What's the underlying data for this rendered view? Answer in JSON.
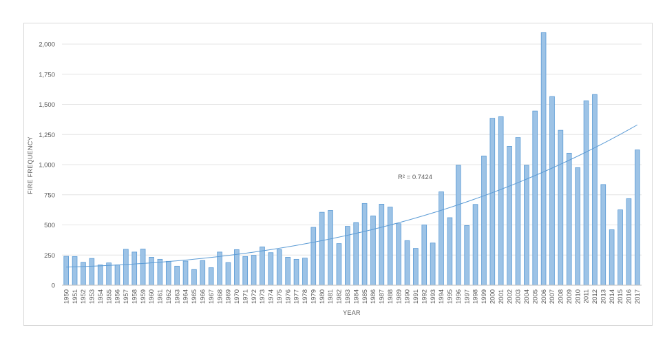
{
  "chart_data": {
    "type": "bar",
    "title": "",
    "xlabel": "YEAR",
    "ylabel": "FIRE FREQUENCY",
    "ylim": [
      0,
      2150
    ],
    "yticks": [
      0,
      250,
      500,
      750,
      1000,
      1250,
      1500,
      1750,
      2000
    ],
    "ytick_labels": [
      "0",
      "250",
      "500",
      "750",
      "1,000",
      "1,250",
      "1,500",
      "1,750",
      "2,000"
    ],
    "grid": true,
    "legend": "none",
    "categories": [
      "1950",
      "1951",
      "1952",
      "1953",
      "1954",
      "1955",
      "1956",
      "1957",
      "1958",
      "1959",
      "1960",
      "1961",
      "1962",
      "1963",
      "1964",
      "1965",
      "1966",
      "1967",
      "1968",
      "1969",
      "1970",
      "1971",
      "1972",
      "1973",
      "1974",
      "1975",
      "1976",
      "1977",
      "1978",
      "1979",
      "1980",
      "1981",
      "1982",
      "1983",
      "1984",
      "1985",
      "1986",
      "1987",
      "1988",
      "1989",
      "1990",
      "1991",
      "1992",
      "1993",
      "1994",
      "1995",
      "1996",
      "1997",
      "1998",
      "1999",
      "2000",
      "2001",
      "2002",
      "2003",
      "2004",
      "2005",
      "2006",
      "2007",
      "2008",
      "2009",
      "2010",
      "2011",
      "2012",
      "2013",
      "2014",
      "2015",
      "2016",
      "2017"
    ],
    "values": [
      240,
      238,
      190,
      222,
      168,
      185,
      168,
      298,
      275,
      300,
      232,
      215,
      198,
      158,
      200,
      130,
      205,
      145,
      275,
      188,
      295,
      238,
      248,
      318,
      270,
      295,
      232,
      215,
      225,
      480,
      605,
      620,
      345,
      488,
      520,
      678,
      575,
      672,
      648,
      510,
      370,
      305,
      500,
      350,
      775,
      560,
      995,
      495,
      670,
      1072,
      1385,
      1398,
      1152,
      1225,
      995,
      1445,
      2095,
      1565,
      1285,
      1095,
      975,
      1530,
      1582,
      835,
      460,
      625,
      718,
      1122
    ],
    "bar_color": "#9dc3e6",
    "bar_edge_color": "#5b9bd5",
    "trendline": {
      "type": "polynomial",
      "color": "#5b9bd5",
      "label": "R² = 0.7424",
      "start_value": 150,
      "end_value": 1330
    }
  }
}
